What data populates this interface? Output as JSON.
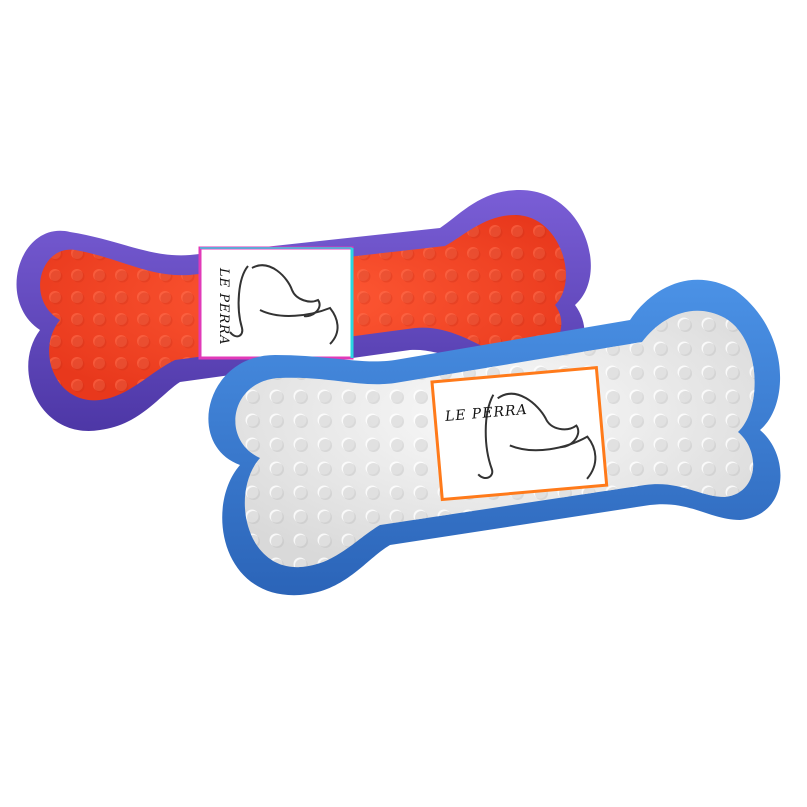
{
  "scene": {
    "background": "#ffffff",
    "description_free": true
  },
  "toys": [
    {
      "id": "purple-orange-bone",
      "rim_color": "#6a4fc7",
      "rim_shadow": "#4f37a8",
      "inner_color": "#ff4a2a",
      "inner_shade": "#e33a1f",
      "label": {
        "brand": "LE PERRA",
        "border_color": "#e13ab8",
        "border_color_2": "#2ad6e0"
      }
    },
    {
      "id": "blue-white-bone",
      "rim_color": "#3a7fd6",
      "rim_shadow": "#2a63b3",
      "inner_color": "#f2f2f2",
      "inner_shade": "#d6d6d6",
      "label": {
        "brand": "LE PERRA",
        "border_color": "#ff7a1a"
      }
    }
  ]
}
